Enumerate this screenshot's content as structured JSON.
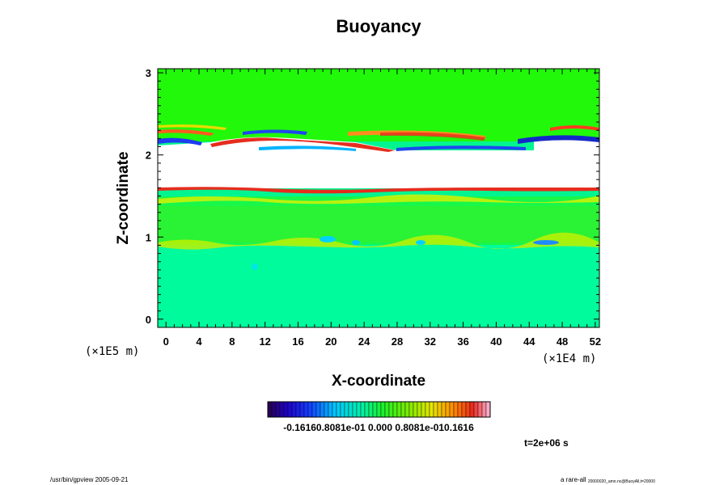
{
  "chart_data": {
    "type": "heatmap",
    "title": "Buoyancy",
    "xlabel": "X-coordinate",
    "ylabel": "Z-coordinate",
    "x_ticks": [
      "0",
      "4",
      "8",
      "12",
      "16",
      "20",
      "24",
      "28",
      "32",
      "36",
      "40",
      "44",
      "48",
      "52"
    ],
    "y_ticks": [
      "0",
      "1",
      "2",
      "3"
    ],
    "x_scale_label": "(×1E4 m)",
    "y_scale_label": "(×1E5 m)",
    "xlim": [
      -1,
      52.5
    ],
    "ylim": [
      -0.1,
      3.05
    ],
    "colorbar": {
      "labels_text": "-0.16160.8081e-01 0.000 0.8081e-010.1616",
      "range": [
        -0.1616,
        0.1616
      ]
    },
    "time_label": "t=2e+06 s",
    "footer_left": "/usr/bin/gpview 2005-09-21",
    "footer_right_main": "a rare-all",
    "footer_right_sub": "20000020_amo.nc@BuoyAll,t=20000",
    "colors": {
      "field_background": "#00fa96",
      "upper_band": "#21f80a",
      "white_gap": "#ffffff",
      "red": "#e62d1e",
      "blue": "#1e46f0"
    }
  }
}
